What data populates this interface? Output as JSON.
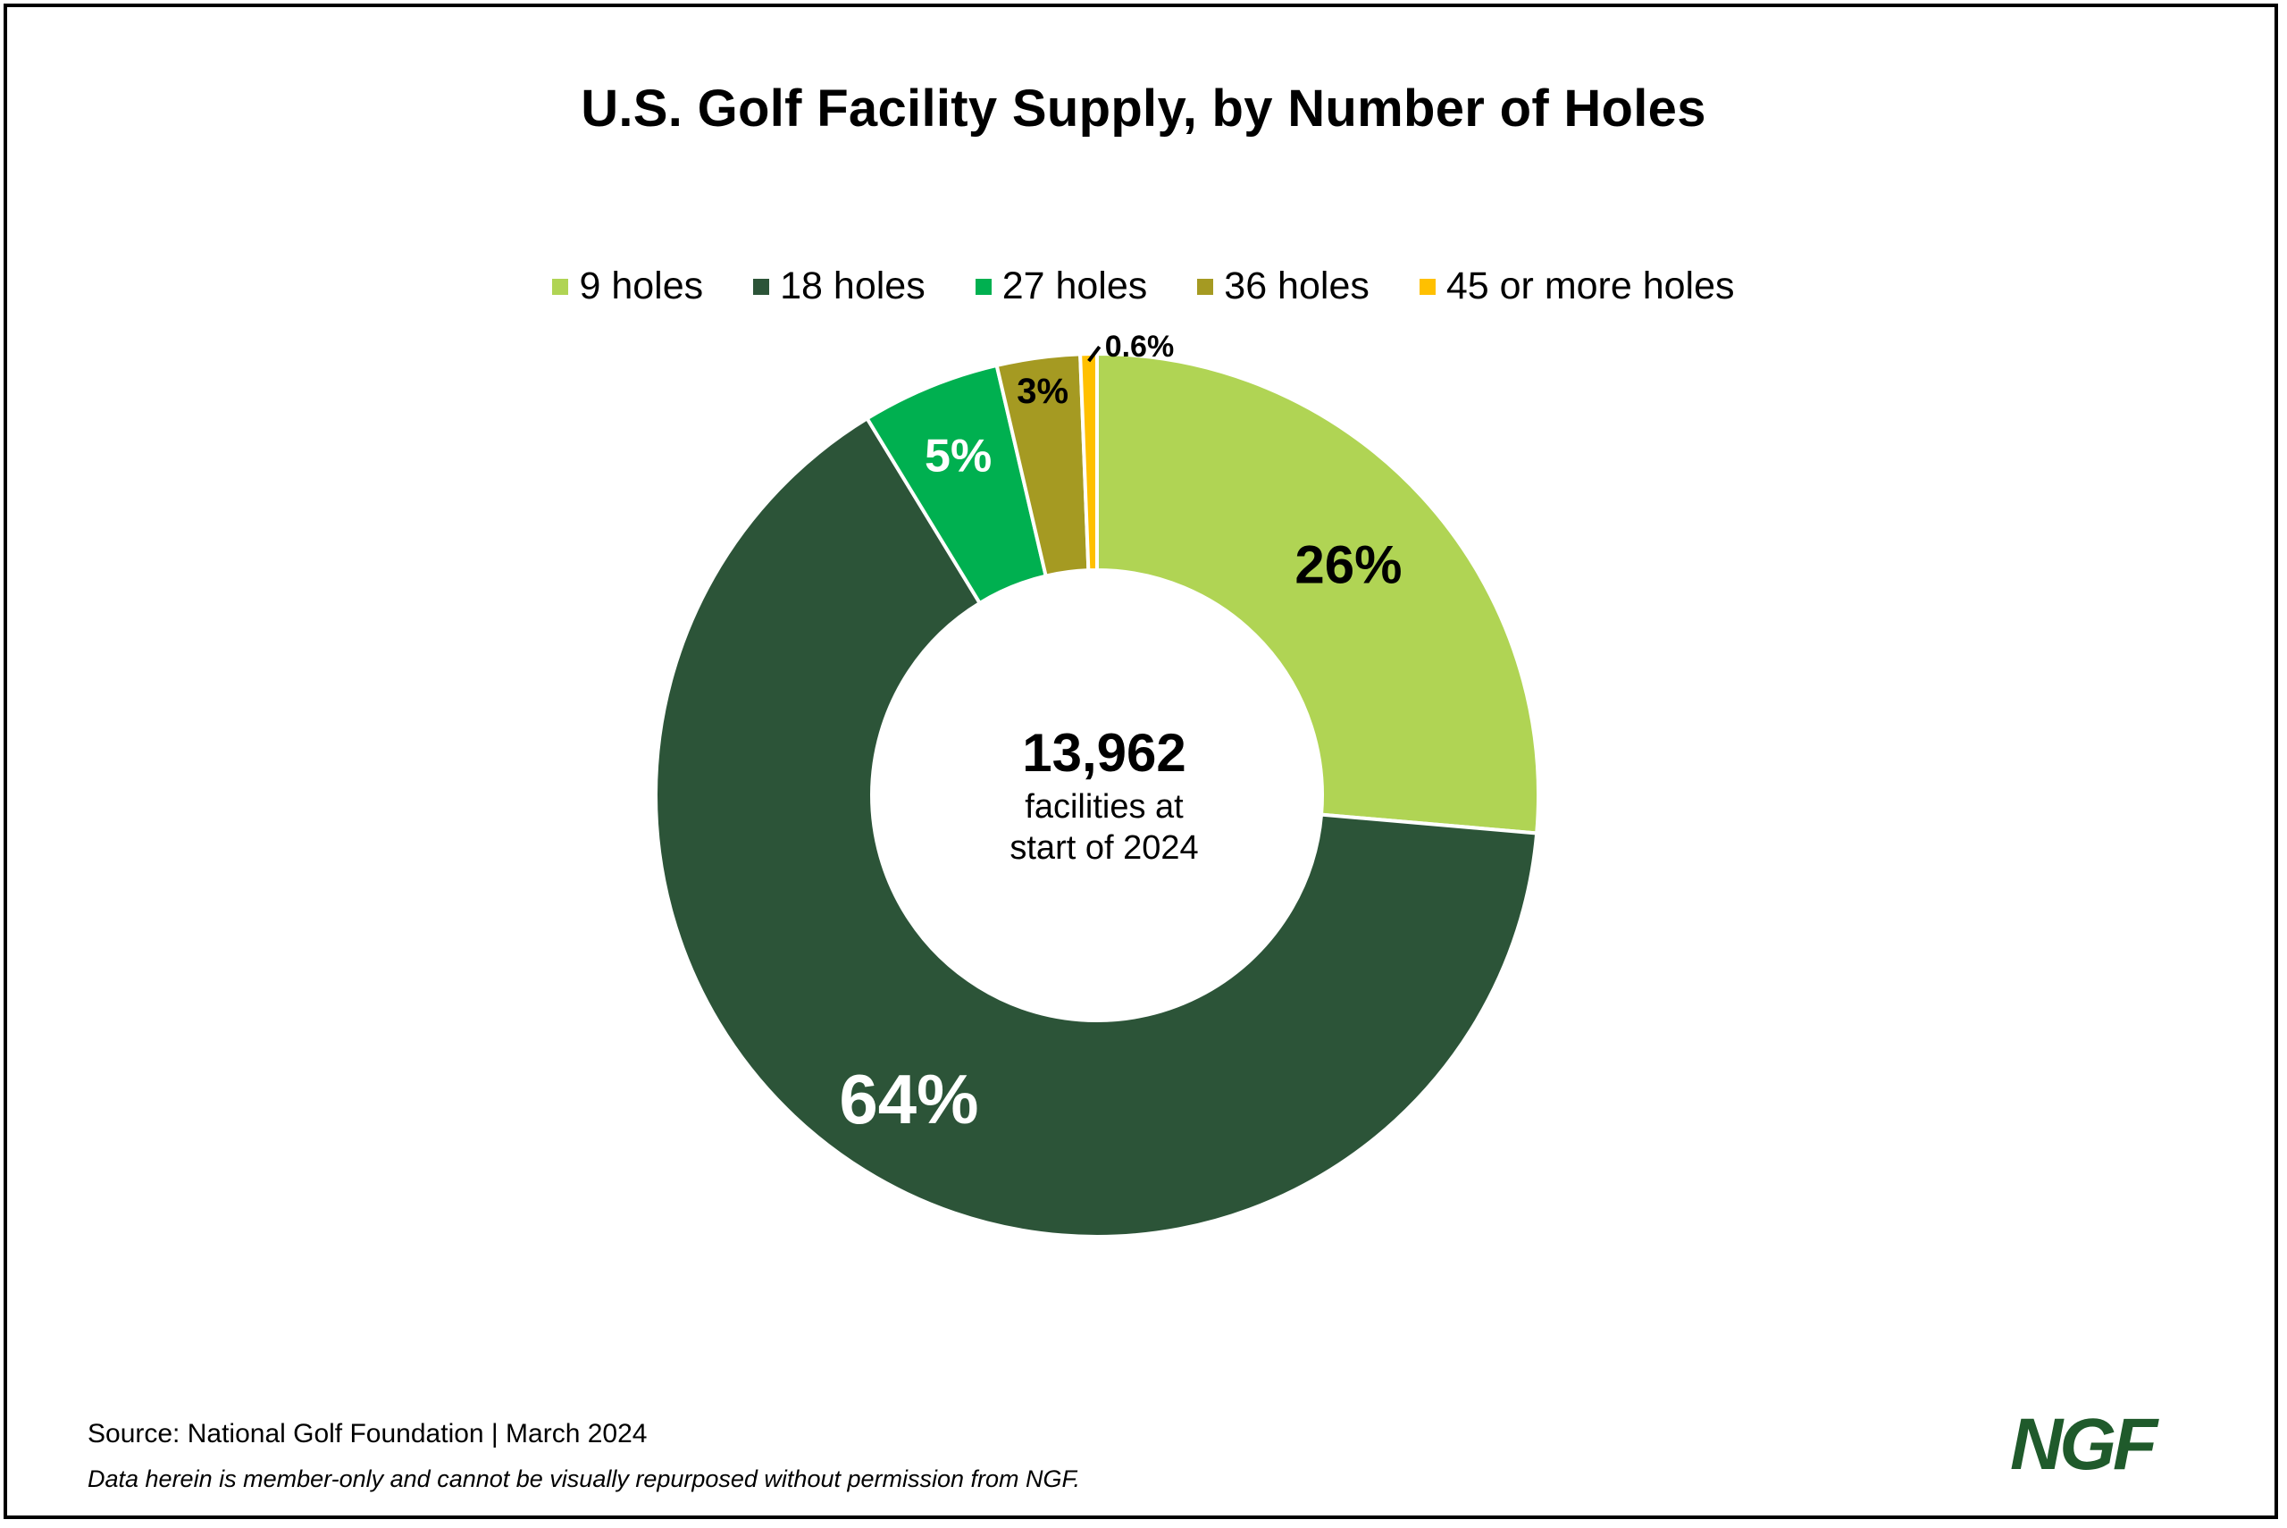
{
  "title": "U.S. Golf Facility Supply, by Number of Holes",
  "center": {
    "number": "13,962",
    "caption_line1": "facilities at",
    "caption_line2": "start of 2024"
  },
  "footer": {
    "source": "Source: National Golf Foundation | March 2024",
    "disclaimer": "Data herein is member-only and cannot be visually repurposed without permission from NGF."
  },
  "logo": "NGF",
  "chart_data": {
    "type": "pie",
    "title": "U.S. Golf Facility Supply, by Number of Holes",
    "donut": true,
    "legend_placement": "top",
    "series": [
      {
        "name": "9 holes",
        "value": 26,
        "label": "26%",
        "color": "#b0d454"
      },
      {
        "name": "18 holes",
        "value": 64,
        "label": "64%",
        "color": "#2c5438"
      },
      {
        "name": "27 holes",
        "value": 5,
        "label": "5%",
        "color": "#00b050"
      },
      {
        "name": "36 holes",
        "value": 3,
        "label": "3%",
        "color": "#a59a22"
      },
      {
        "name": "45 or more holes",
        "value": 0.6,
        "label": "0.6%",
        "color": "#ffc000"
      }
    ],
    "label_colors": [
      "#000000",
      "#ffffff",
      "#ffffff",
      "#000000",
      "#000000"
    ]
  }
}
